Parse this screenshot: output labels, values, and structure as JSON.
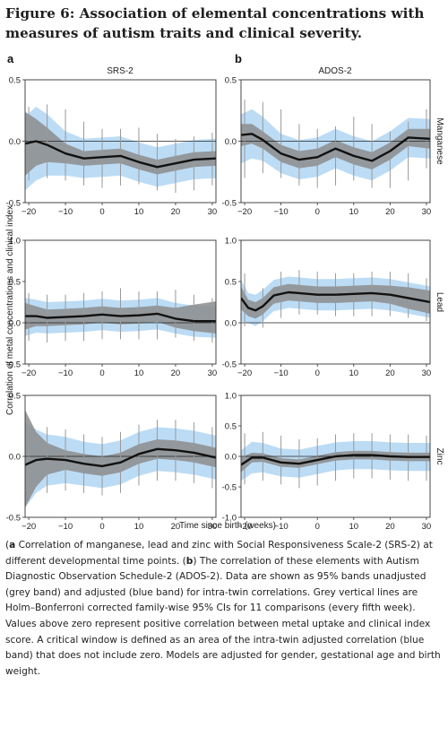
{
  "figure": {
    "title": "Figure 6: Association of elemental concentrations with measures of autism traits and clinical severity."
  },
  "caption": {
    "a_label": "a",
    "a_text": " Correlation of manganese, lead and zinc with Social Responsiveness Scale-2 (SRS-2) at different developmental time points. (",
    "b_label": "b",
    "b_text": ") The correlation of these elements with Autism Diagnostic Observation Schedule-2 (ADOS-2). Data are shown as 95% bands unadjusted (grey band) and adjusted (blue band) for intra-twin correlations. Grey vertical lines are Holm–Bonferroni corrected family-wise 95% CIs for 11 comparisons (every fifth week). Values above zero represent positive correlation between metal uptake and clinical index score. A critical window is defined as an area of the intra-twin adjusted correlation (blue band) that does not include zero. Models are adjusted for gender, gestational age and birth weight.",
    "open_paren": "(",
    "close_paren": ")"
  },
  "colors": {
    "grey_band": "#8c8c8c",
    "blue_band": "#bcdcf5",
    "line": "#111111",
    "ci_line": "#999999"
  },
  "chart_data": {
    "type": "line",
    "panel_labels": [
      "a",
      "b"
    ],
    "column_titles": [
      "SRS-2",
      "ADOS-2"
    ],
    "row_labels": [
      "Manganese",
      "Lead",
      "Zinc"
    ],
    "ylabel": "Correlation of metal concentrations and clinical index",
    "xlabel": "Time since birth (weeks)",
    "x_ticks": [
      -20,
      -10,
      0,
      10,
      20,
      30
    ],
    "ci_x": [
      -20,
      -15,
      -10,
      -5,
      0,
      5,
      10,
      15,
      20,
      25,
      30
    ],
    "panels": [
      {
        "column": "SRS-2",
        "row": "Manganese",
        "ylim": [
          -0.5,
          0.5
        ],
        "y_ticks": [
          "-0.5",
          "0.0",
          "0.5"
        ],
        "x": [
          -21,
          -18,
          -15,
          -10,
          -5,
          0,
          5,
          10,
          15,
          20,
          25,
          31
        ],
        "line": [
          -0.02,
          0.0,
          -0.03,
          -0.1,
          -0.14,
          -0.13,
          -0.12,
          -0.17,
          -0.21,
          -0.18,
          -0.15,
          -0.14
        ],
        "grey_lower": [
          -0.28,
          -0.2,
          -0.17,
          -0.18,
          -0.2,
          -0.19,
          -0.18,
          -0.23,
          -0.27,
          -0.24,
          -0.21,
          -0.2
        ],
        "grey_upper": [
          0.24,
          0.18,
          0.11,
          -0.02,
          -0.08,
          -0.07,
          -0.06,
          -0.11,
          -0.15,
          -0.12,
          -0.09,
          -0.08
        ],
        "blue_lower": [
          -0.4,
          -0.32,
          -0.28,
          -0.28,
          -0.3,
          -0.29,
          -0.28,
          -0.33,
          -0.37,
          -0.34,
          -0.31,
          -0.3
        ],
        "blue_upper": [
          0.2,
          0.28,
          0.22,
          0.08,
          0.02,
          0.03,
          0.04,
          -0.01,
          -0.05,
          -0.02,
          0.01,
          0.02
        ],
        "ci_lower": [
          -0.32,
          -0.3,
          -0.32,
          -0.36,
          -0.38,
          -0.36,
          -0.35,
          -0.4,
          -0.42,
          -0.4,
          -0.36
        ],
        "ci_upper": [
          0.28,
          0.3,
          0.26,
          0.16,
          0.1,
          0.1,
          0.11,
          0.06,
          0.02,
          0.04,
          0.07
        ]
      },
      {
        "column": "ADOS-2",
        "row": "Manganese",
        "ylim": [
          -0.5,
          0.5
        ],
        "y_ticks": [
          "-0.5",
          "0.0",
          "0.5"
        ],
        "x": [
          -21,
          -18,
          -15,
          -10,
          -5,
          0,
          5,
          10,
          15,
          20,
          25,
          31
        ],
        "line": [
          0.05,
          0.06,
          0.01,
          -0.1,
          -0.15,
          -0.13,
          -0.06,
          -0.12,
          -0.16,
          -0.08,
          0.03,
          0.02
        ],
        "grey_lower": [
          -0.04,
          -0.02,
          -0.06,
          -0.17,
          -0.22,
          -0.2,
          -0.13,
          -0.19,
          -0.23,
          -0.15,
          -0.04,
          -0.06
        ],
        "grey_upper": [
          0.14,
          0.14,
          0.08,
          -0.03,
          -0.08,
          -0.06,
          0.01,
          -0.05,
          -0.09,
          -0.01,
          0.1,
          0.1
        ],
        "blue_lower": [
          -0.18,
          -0.14,
          -0.16,
          -0.26,
          -0.31,
          -0.29,
          -0.22,
          -0.28,
          -0.32,
          -0.24,
          -0.13,
          -0.14
        ],
        "blue_upper": [
          0.22,
          0.26,
          0.2,
          0.06,
          0.01,
          0.03,
          0.1,
          0.04,
          0.0,
          0.08,
          0.19,
          0.18
        ],
        "ci_lower": [
          -0.3,
          -0.26,
          -0.3,
          -0.36,
          -0.38,
          -0.36,
          -0.32,
          -0.38,
          -0.38,
          -0.32,
          -0.22
        ],
        "ci_upper": [
          0.34,
          0.32,
          0.26,
          0.14,
          0.1,
          0.12,
          0.2,
          0.14,
          0.08,
          0.16,
          0.26
        ]
      },
      {
        "column": "SRS-2",
        "row": "Lead",
        "ylim": [
          -0.5,
          1.0
        ],
        "y_ticks": [
          "-0.5",
          "0.0",
          "0.5",
          "1.0"
        ],
        "x": [
          -21,
          -18,
          -15,
          -10,
          -5,
          0,
          5,
          10,
          15,
          20,
          25,
          31
        ],
        "line": [
          0.08,
          0.08,
          0.06,
          0.07,
          0.08,
          0.1,
          0.08,
          0.09,
          0.11,
          0.05,
          0.02,
          0.02
        ],
        "grey_lower": [
          -0.08,
          -0.04,
          -0.04,
          -0.03,
          -0.02,
          0.0,
          -0.02,
          -0.01,
          0.01,
          -0.06,
          -0.1,
          -0.13
        ],
        "grey_upper": [
          0.24,
          0.2,
          0.16,
          0.17,
          0.18,
          0.2,
          0.18,
          0.19,
          0.21,
          0.18,
          0.22,
          0.26
        ],
        "blue_lower": [
          -0.16,
          -0.12,
          -0.13,
          -0.12,
          -0.11,
          -0.09,
          -0.11,
          -0.1,
          -0.08,
          -0.13,
          -0.17,
          -0.18
        ],
        "blue_upper": [
          0.3,
          0.28,
          0.25,
          0.26,
          0.27,
          0.29,
          0.27,
          0.28,
          0.3,
          0.24,
          0.21,
          0.2
        ],
        "ci_lower": [
          -0.22,
          -0.24,
          -0.22,
          -0.22,
          -0.2,
          -0.2,
          -0.2,
          -0.2,
          -0.18,
          -0.22,
          -0.24
        ],
        "ci_upper": [
          0.36,
          0.34,
          0.34,
          0.36,
          0.38,
          0.42,
          0.38,
          0.38,
          0.4,
          0.34,
          0.3
        ]
      },
      {
        "column": "ADOS-2",
        "row": "Lead",
        "ylim": [
          -0.5,
          1.0
        ],
        "y_ticks": [
          "-0.5",
          "0.0",
          "0.5",
          "1.0"
        ],
        "x": [
          -21,
          -19,
          -17,
          -15,
          -12,
          -8,
          -5,
          0,
          5,
          10,
          15,
          20,
          25,
          31
        ],
        "line": [
          0.3,
          0.18,
          0.15,
          0.2,
          0.33,
          0.37,
          0.36,
          0.34,
          0.34,
          0.35,
          0.36,
          0.34,
          0.3,
          0.25
        ],
        "grey_lower": [
          0.16,
          0.08,
          0.05,
          0.1,
          0.23,
          0.27,
          0.26,
          0.24,
          0.24,
          0.25,
          0.26,
          0.23,
          0.17,
          0.11
        ],
        "grey_upper": [
          0.44,
          0.28,
          0.25,
          0.3,
          0.43,
          0.47,
          0.46,
          0.44,
          0.44,
          0.45,
          0.46,
          0.45,
          0.43,
          0.39
        ],
        "blue_lower": [
          0.02,
          0.0,
          -0.04,
          0.02,
          0.14,
          0.18,
          0.17,
          0.15,
          0.15,
          0.16,
          0.17,
          0.15,
          0.11,
          0.06
        ],
        "blue_upper": [
          0.52,
          0.36,
          0.34,
          0.4,
          0.52,
          0.56,
          0.55,
          0.53,
          0.53,
          0.54,
          0.55,
          0.53,
          0.49,
          0.44
        ],
        "ci_lower": [
          -0.04,
          -0.06,
          0.06,
          0.1,
          0.1,
          0.08,
          0.08,
          0.08,
          0.08,
          0.06,
          0.02
        ],
        "ci_upper": [
          0.6,
          0.42,
          0.62,
          0.64,
          0.62,
          0.6,
          0.6,
          0.62,
          0.62,
          0.6,
          0.54
        ]
      },
      {
        "column": "SRS-2",
        "row": "Zinc",
        "ylim": [
          -0.5,
          0.5
        ],
        "y_ticks": [
          "-0.5",
          "0.0",
          "0.5"
        ],
        "x": [
          -21,
          -18,
          -15,
          -10,
          -5,
          0,
          5,
          10,
          15,
          20,
          25,
          31
        ],
        "line": [
          -0.07,
          -0.03,
          -0.02,
          -0.03,
          -0.06,
          -0.08,
          -0.05,
          0.02,
          0.06,
          0.05,
          0.03,
          -0.01
        ],
        "grey_lower": [
          -0.42,
          -0.25,
          -0.15,
          -0.11,
          -0.14,
          -0.16,
          -0.13,
          -0.06,
          -0.02,
          -0.03,
          -0.05,
          -0.09
        ],
        "grey_upper": [
          0.38,
          0.2,
          0.11,
          0.05,
          0.02,
          0.0,
          0.03,
          0.1,
          0.14,
          0.13,
          0.11,
          0.07
        ],
        "blue_lower": [
          -0.42,
          -0.3,
          -0.24,
          -0.22,
          -0.24,
          -0.26,
          -0.23,
          -0.16,
          -0.12,
          -0.13,
          -0.15,
          -0.19
        ],
        "blue_upper": [
          0.28,
          0.22,
          0.18,
          0.16,
          0.12,
          0.1,
          0.13,
          0.2,
          0.24,
          0.23,
          0.21,
          0.17
        ],
        "ci_lower": [
          -0.34,
          -0.3,
          -0.28,
          -0.3,
          -0.32,
          -0.3,
          -0.24,
          -0.2,
          -0.2,
          -0.22,
          -0.26
        ],
        "ci_upper": [
          0.26,
          0.24,
          0.22,
          0.18,
          0.16,
          0.2,
          0.26,
          0.3,
          0.3,
          0.28,
          0.24
        ]
      },
      {
        "column": "ADOS-2",
        "row": "Zinc",
        "ylim": [
          -1.0,
          1.0
        ],
        "y_ticks": [
          "-1.0",
          "-0.5",
          "0.0",
          "0.5",
          "1.0"
        ],
        "x": [
          -21,
          -18,
          -15,
          -10,
          -5,
          0,
          5,
          10,
          15,
          20,
          25,
          31
        ],
        "line": [
          -0.14,
          -0.02,
          -0.02,
          -0.1,
          -0.12,
          -0.06,
          0.0,
          0.02,
          0.02,
          0.0,
          -0.01,
          -0.01
        ],
        "grey_lower": [
          -0.26,
          -0.1,
          -0.09,
          -0.17,
          -0.19,
          -0.13,
          -0.07,
          -0.05,
          -0.05,
          -0.07,
          -0.08,
          -0.08
        ],
        "grey_upper": [
          -0.02,
          0.06,
          0.05,
          -0.03,
          -0.05,
          0.01,
          0.07,
          0.09,
          0.09,
          0.07,
          0.06,
          0.06
        ],
        "blue_lower": [
          -0.4,
          -0.28,
          -0.26,
          -0.33,
          -0.35,
          -0.29,
          -0.23,
          -0.21,
          -0.21,
          -0.23,
          -0.24,
          -0.24
        ],
        "blue_upper": [
          0.1,
          0.24,
          0.22,
          0.13,
          0.11,
          0.17,
          0.23,
          0.25,
          0.25,
          0.23,
          0.22,
          0.22
        ],
        "ci_lower": [
          -0.46,
          -0.4,
          -0.46,
          -0.52,
          -0.48,
          -0.4,
          -0.36,
          -0.36,
          -0.38,
          -0.4,
          -0.4
        ],
        "ci_upper": [
          0.38,
          0.4,
          0.34,
          0.28,
          0.3,
          0.36,
          0.38,
          0.38,
          0.36,
          0.36,
          0.34
        ]
      }
    ]
  }
}
